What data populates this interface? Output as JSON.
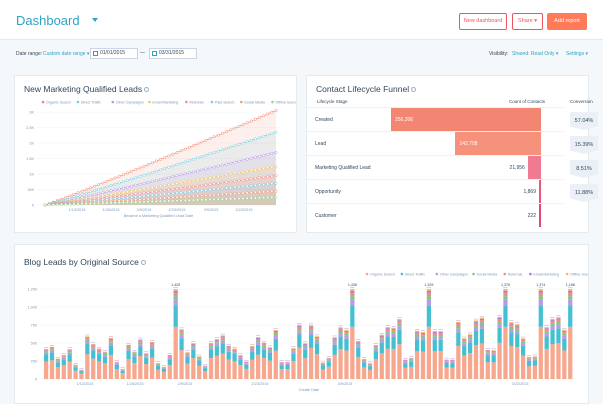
{
  "header": {
    "title": "Dashboard",
    "new_dashboard": "New dashboard",
    "share": "Share",
    "add_report": "Add report"
  },
  "filters": {
    "date_range_label": "Date range:",
    "date_range_value": "Custom date range",
    "start_date": "01/01/2015",
    "end_date": "03/31/2015",
    "visibility_label": "Visibility:",
    "visibility_value": "Shared: Read Only",
    "settings": "Settings"
  },
  "mql_chart": {
    "title": "New Marketing Qualified Leads",
    "xlabel": "Became a Marketing Qualified Lead Date",
    "legend": [
      "Organic Search",
      "Direct Traffic",
      "Other Campaigns",
      "Email Marketing",
      "Referrals",
      "Paid Search",
      "Social Media",
      "Offline Sources"
    ],
    "yticks": [
      "0",
      "500",
      "1K",
      "1.5K",
      "2K",
      "2.5K",
      "3K"
    ],
    "xticks": [
      "1/12/2015",
      "1/26/2015",
      "2/9/2015",
      "2/23/2015",
      "3/9/2015",
      "3/23/2015"
    ],
    "colors": [
      "#f2856d",
      "#6cd2e0",
      "#b698e8",
      "#f6c35a",
      "#f58c8c",
      "#80c9e8",
      "#ee9c74",
      "#9ad38e"
    ]
  },
  "funnel": {
    "title": "Contact Lifecycle Funnel",
    "col_stage": "Lifecycle Stage",
    "col_count": "Count of Contacts",
    "col_conv": "Conversion",
    "rows": [
      {
        "stage": "Created",
        "count": "250,206",
        "value": 250206,
        "conversion": "57.04%"
      },
      {
        "stage": "Lead",
        "count": "142,708",
        "value": 142708,
        "conversion": "15.39%"
      },
      {
        "stage": "Marketing Qualified Lead",
        "count": "21,956",
        "value": 21956,
        "conversion": "8.51%"
      },
      {
        "stage": "Opportunity",
        "count": "1,869",
        "value": 1869,
        "conversion": "11.88%"
      },
      {
        "stage": "Customer",
        "count": "222",
        "value": 222,
        "conversion": ""
      }
    ]
  },
  "blog_chart": {
    "title": "Blog Leads by Original Source",
    "xlabel": "Create Date",
    "legend": [
      "Organic Search",
      "Direct Traffic",
      "Other Campaigns",
      "Social Media",
      "Referrals",
      "Email Marketing",
      "Offline Sources"
    ],
    "yticks": [
      "0",
      "250",
      "500",
      "750",
      "1,000",
      "1,250"
    ],
    "xticks": [
      "1/12/2015",
      "1/26/2015",
      "2/9/2015",
      "2/23/2015",
      "3/9/2015",
      "3/23/2015"
    ],
    "top_labels": [
      "1,429",
      "1,438",
      "1,329",
      "1,376",
      "1,374",
      "1,188"
    ],
    "colors": [
      "#f6a78d",
      "#45c0d1",
      "#b89ae6",
      "#7dc97d",
      "#f28a8a",
      "#a779d8",
      "#f6b65f"
    ]
  }
}
